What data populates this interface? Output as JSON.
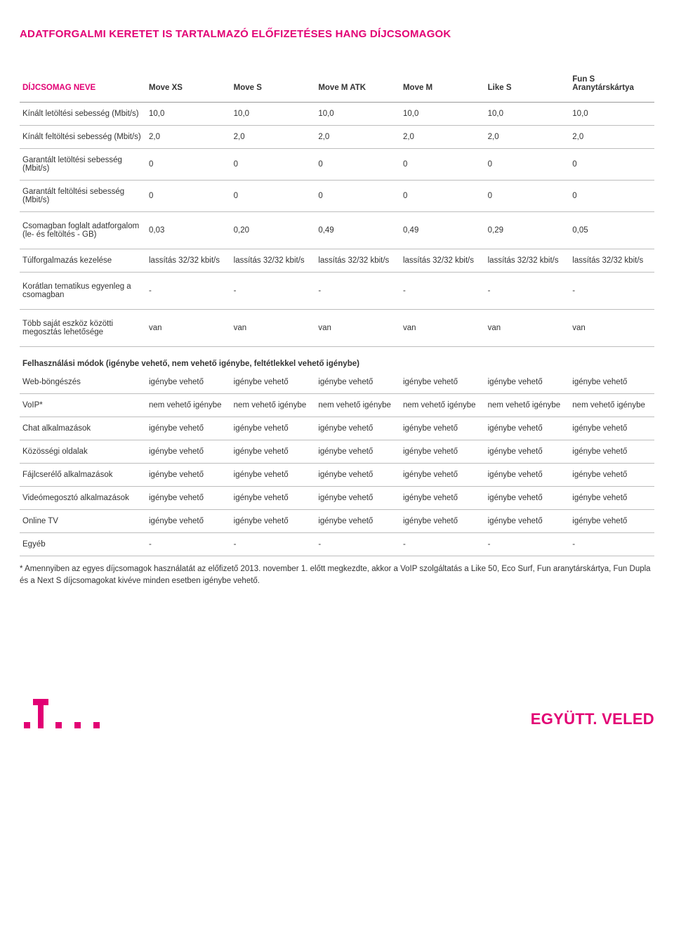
{
  "title": "ADATFORGALMI KERETET IS TARTALMAZÓ ELŐFIZETÉSES HANG DÍJCSOMAGOK",
  "header": {
    "label": "DÍJCSOMAG NEVE",
    "plans": [
      "Move XS",
      "Move S",
      "Move M ATK",
      "Move M",
      "Like S",
      "Fun S\nAranytárskártya"
    ]
  },
  "rows": [
    {
      "label": "Kínált letöltési sebesség (Mbit/s)",
      "values": [
        "10,0",
        "10,0",
        "10,0",
        "10,0",
        "10,0",
        "10,0"
      ]
    },
    {
      "label": "Kínált feltöltési sebesség (Mbit/s)",
      "values": [
        "2,0",
        "2,0",
        "2,0",
        "2,0",
        "2,0",
        "2,0"
      ]
    },
    {
      "label": "Garantált letöltési sebesség (Mbit/s)",
      "values": [
        "0",
        "0",
        "0",
        "0",
        "0",
        "0"
      ]
    },
    {
      "label": "Garantált feltöltési sebesség (Mbit/s)",
      "values": [
        "0",
        "0",
        "0",
        "0",
        "0",
        "0"
      ]
    },
    {
      "label": "Csomagban foglalt adatforgalom (le- és feltöltés - GB)",
      "values": [
        "0,03",
        "0,20",
        "0,49",
        "0,49",
        "0,29",
        "0,05"
      ]
    },
    {
      "label": "Túlforgalmazás kezelése",
      "values": [
        "lassítás 32/32 kbit/s",
        "lassítás 32/32 kbit/s",
        "lassítás 32/32 kbit/s",
        "lassítás 32/32 kbit/s",
        "lassítás 32/32 kbit/s",
        "lassítás 32/32 kbit/s"
      ]
    },
    {
      "label": "Korátlan tematikus egyenleg a csomagban",
      "values": [
        "-",
        "-",
        "-",
        "-",
        "-",
        "-"
      ]
    },
    {
      "label": "Több saját eszköz közötti megosztás lehetősége",
      "values": [
        "van",
        "van",
        "van",
        "van",
        "van",
        "van"
      ]
    }
  ],
  "section2_heading": "Felhasználási módok (igénybe vehető, nem vehető igénybe, feltétlekkel vehető igénybe)",
  "rows2": [
    {
      "label": "Web-böngészés",
      "values": [
        "igénybe vehető",
        "igénybe vehető",
        "igénybe vehető",
        "igénybe vehető",
        "igénybe vehető",
        "igénybe vehető"
      ]
    },
    {
      "label": "VoIP*",
      "values": [
        "nem vehető igénybe",
        "nem vehető igénybe",
        "nem vehető igénybe",
        "nem vehető igénybe",
        "nem vehető igénybe",
        "nem vehető igénybe"
      ]
    },
    {
      "label": "Chat alkalmazások",
      "values": [
        "igénybe vehető",
        "igénybe vehető",
        "igénybe vehető",
        "igénybe vehető",
        "igénybe vehető",
        "igénybe vehető"
      ]
    },
    {
      "label": "Közösségi oldalak",
      "values": [
        "igénybe vehető",
        "igénybe vehető",
        "igénybe vehető",
        "igénybe vehető",
        "igénybe vehető",
        "igénybe vehető"
      ]
    },
    {
      "label": "Fájlcserélő alkalmazások",
      "values": [
        "igénybe vehető",
        "igénybe vehető",
        "igénybe vehető",
        "igénybe vehető",
        "igénybe vehető",
        "igénybe vehető"
      ]
    },
    {
      "label": "Videómegosztó alkalmazások",
      "values": [
        "igénybe vehető",
        "igénybe vehető",
        "igénybe vehető",
        "igénybe vehető",
        "igénybe vehető",
        "igénybe vehető"
      ]
    },
    {
      "label": "Online TV",
      "values": [
        "igénybe vehető",
        "igénybe vehető",
        "igénybe vehető",
        "igénybe vehető",
        "igénybe vehető",
        "igénybe vehető"
      ]
    },
    {
      "label": "Egyéb",
      "values": [
        "-",
        "-",
        "-",
        "-",
        "-",
        "-"
      ]
    }
  ],
  "footnote": "* Amennyiben az egyes díjcsomagok használatát az előfizető 2013. november 1. előtt megkezdte, akkor a VoIP szolgáltatás a Like 50, Eco Surf, Fun aranytárskártya, Fun Dupla és a Next S díjcsomagokat kivéve minden esetben igénybe vehető.",
  "slogan": "EGYÜTT. VELED",
  "colors": {
    "brand": "#e20074",
    "text": "#333333",
    "rule": "#bdbdbd"
  }
}
